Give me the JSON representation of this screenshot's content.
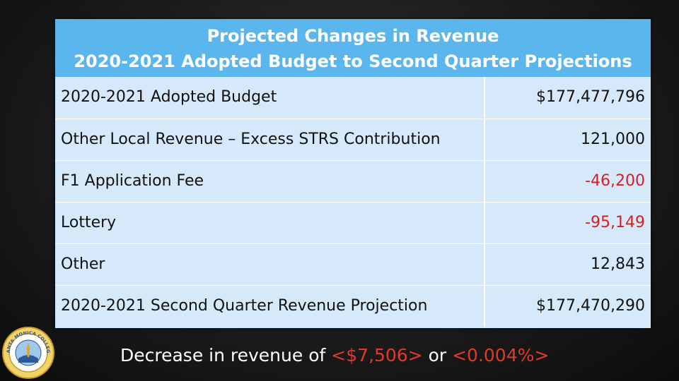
{
  "header": {
    "line1": "Projected Changes in Revenue",
    "line2": "2020-2021 Adopted Budget to Second Quarter Projections"
  },
  "rows": [
    {
      "label": "2020-2021 Adopted Budget",
      "value": "$177,477,796",
      "negative": false
    },
    {
      "label": "Other Local Revenue – Excess STRS Contribution",
      "value": "121,000",
      "negative": false
    },
    {
      "label": "F1 Application Fee",
      "value": "-46,200",
      "negative": true
    },
    {
      "label": "Lottery",
      "value": "-95,149",
      "negative": true
    },
    {
      "label": "Other",
      "value": "12,843",
      "negative": false
    },
    {
      "label": "2020-2021 Second Quarter Revenue Projection",
      "value": "$177,470,290",
      "negative": false
    }
  ],
  "footer": {
    "prefix": "Decrease in revenue of ",
    "amount": "<$7,506>",
    "middle": " or ",
    "percent": "<0.004%>"
  },
  "colors": {
    "header_bg": "#5cb6ee",
    "row_bg": "#d6e9fa",
    "negative": "#d81e1e",
    "footer_highlight": "#e23a2a"
  },
  "seal": {
    "icon": "college-seal-icon",
    "text": "SANTA MONICA COLLEGE"
  }
}
